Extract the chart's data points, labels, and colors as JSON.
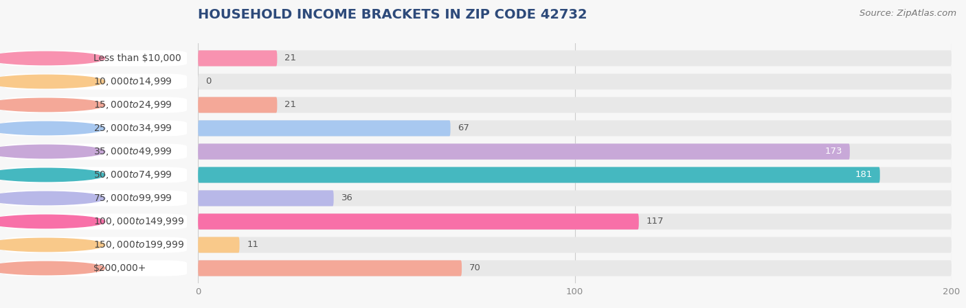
{
  "title": "HOUSEHOLD INCOME BRACKETS IN ZIP CODE 42732",
  "source": "Source: ZipAtlas.com",
  "categories": [
    "Less than $10,000",
    "$10,000 to $14,999",
    "$15,000 to $24,999",
    "$25,000 to $34,999",
    "$35,000 to $49,999",
    "$50,000 to $74,999",
    "$75,000 to $99,999",
    "$100,000 to $149,999",
    "$150,000 to $199,999",
    "$200,000+"
  ],
  "values": [
    21,
    0,
    21,
    67,
    173,
    181,
    36,
    117,
    11,
    70
  ],
  "bar_colors": [
    "#F892B0",
    "#F9C98A",
    "#F4A898",
    "#A8C8F0",
    "#C8A8D8",
    "#45B8C0",
    "#B8B8E8",
    "#F870A8",
    "#F9C98A",
    "#F4A898"
  ],
  "bg_color": "#f7f7f7",
  "bar_bg_color": "#e8e8e8",
  "label_bg_color": "#ffffff",
  "xlim_data": [
    0,
    200
  ],
  "xticks": [
    0,
    100,
    200
  ],
  "title_fontsize": 14,
  "label_fontsize": 10,
  "value_fontsize": 9.5,
  "source_fontsize": 9.5,
  "title_color": "#2d4a7a",
  "label_color": "#555555",
  "value_color_dark": "#555555",
  "value_color_light": "#ffffff"
}
